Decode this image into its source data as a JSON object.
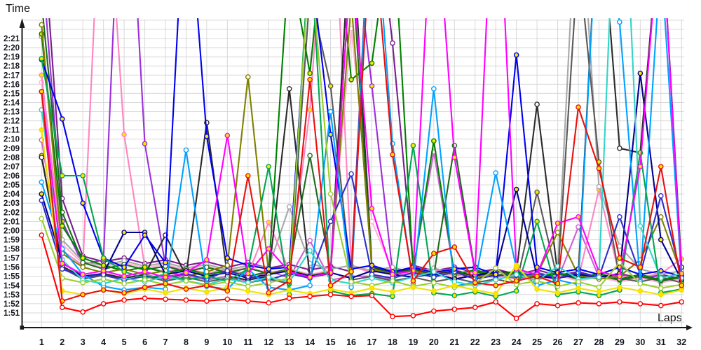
{
  "chart_data": {
    "type": "line",
    "title": "",
    "ylabel": "Time",
    "xlabel": "Laps",
    "grid": true,
    "legend": "none",
    "x_ticks": [
      1,
      2,
      3,
      4,
      5,
      6,
      7,
      8,
      9,
      10,
      11,
      12,
      13,
      14,
      15,
      16,
      17,
      18,
      19,
      20,
      21,
      22,
      23,
      24,
      25,
      26,
      27,
      28,
      29,
      30,
      31,
      32
    ],
    "y_tick_labels": [
      "2:21",
      "2:20",
      "2:19",
      "2:18",
      "2:17",
      "2:16",
      "2:15",
      "2:14",
      "2:13",
      "2:12",
      "2:11",
      "2:10",
      "2:09",
      "2:08",
      "2:07",
      "2:06",
      "2:05",
      "2:04",
      "2:03",
      "2:02",
      "2:01",
      "2:00",
      "1:59",
      "1:58",
      "1:57",
      "1:56",
      "1:55",
      "1:54",
      "1:53",
      "1:52",
      "1:51"
    ],
    "y_tick_seconds_top": 141,
    "ylim_seconds": [
      110,
      143
    ],
    "xlim_laps": [
      1,
      32
    ],
    "axis_color": "#1a1a1a",
    "grid_color": "#d8d8d8",
    "tick_label_color": "#14141e",
    "marker_fills": {
      "white": "#ffffff",
      "yellow": "#ffe400"
    },
    "note": "values are lap times in seconds; values above ~143s run off the top of the plot (pit/incident laps)",
    "series": [
      {
        "id": "series-purple",
        "color": "#7a1f8e",
        "marker": "white",
        "values": [
          155,
          123.5,
          117.2,
          116.6,
          117,
          116.4,
          116.8,
          116.2,
          116.6,
          116,
          116.5,
          115.9,
          116.3,
          115.7,
          116.1,
          115.5,
          160,
          140.5,
          116.2,
          115.6,
          116,
          115.4,
          115.8,
          115.2,
          115.7,
          115.1,
          115.5,
          114.9,
          115.3,
          114.8,
          115.2,
          114.7
        ]
      },
      {
        "id": "series-violet",
        "color": "#9b30d9",
        "marker": "yellow",
        "values": [
          150,
          121,
          116.3,
          116.8,
          170,
          129.5,
          116.2,
          115.6,
          116,
          115.4,
          115.9,
          115.3,
          115.8,
          115.2,
          115.6,
          155,
          135.8,
          115.5,
          115.9,
          115.3,
          115.7,
          115.1,
          115.6,
          115,
          115.4,
          114.9,
          115.3,
          114.8,
          115.2,
          114.7,
          115.1,
          114.6
        ]
      },
      {
        "id": "series-orchid",
        "color": "#cf5fd3",
        "marker": "white",
        "values": [
          129.9,
          116,
          114.9,
          115.3,
          114.8,
          115.2,
          114.7,
          115.1,
          114.6,
          115,
          114.5,
          115.6,
          114.8,
          118.9,
          114.6,
          115,
          115,
          114.7,
          115.8,
          128.6,
          115.2,
          114.8,
          115.3,
          114.7,
          115.1,
          114.6,
          120.4,
          114.9,
          114.5,
          114.8,
          114.4,
          114.7
        ]
      },
      {
        "id": "series-lightpink",
        "color": "#ffb5d9",
        "marker": "white",
        "values": [
          136.2,
          118.5,
          116.4,
          116,
          116.5,
          115.9,
          116.3,
          115.7,
          116.1,
          115.5,
          116,
          115.4,
          115.8,
          115.2,
          115.7,
          142.1,
          121,
          115.6,
          115,
          115.5,
          114.9,
          115.3,
          114.8,
          115.2,
          114.6,
          115.1,
          114.5,
          114.9,
          114.4,
          114.8,
          114.3,
          114.7
        ]
      },
      {
        "id": "series-pink",
        "color": "#ff85c2",
        "marker": "yellow",
        "values": [
          137,
          117.8,
          116.2,
          165,
          130.5,
          116,
          115.5,
          115.9,
          115.3,
          115.8,
          115.2,
          120.9,
          115.6,
          133.2,
          165,
          116.1,
          115.4,
          115.8,
          115.2,
          115.7,
          115.1,
          115.5,
          114.9,
          115.4,
          114.8,
          115.2,
          114.7,
          124.5,
          115,
          114.9,
          115.3,
          116.9
        ]
      },
      {
        "id": "series-gray",
        "color": "#a8a8a8",
        "marker": "white",
        "values": [
          141.2,
          119,
          116.6,
          116.2,
          116.7,
          116.1,
          116.5,
          115.9,
          116.3,
          115.7,
          116.2,
          116,
          122.6,
          116.4,
          115.8,
          116.2,
          115.6,
          116,
          115.4,
          115.9,
          115.3,
          115.7,
          115.1,
          115.6,
          115,
          115.5,
          160,
          124.8,
          118.3,
          115.8,
          115.2,
          115.6
        ]
      },
      {
        "id": "series-darkgray",
        "color": "#595959",
        "marker": "yellow",
        "values": [
          128.2,
          115.9,
          114.7,
          115.1,
          114.6,
          115,
          114.5,
          114.9,
          114.4,
          114.8,
          114.3,
          114.7,
          114.2,
          146,
          135.8,
          114.6,
          115,
          114.5,
          114.9,
          114.4,
          114.8,
          114.3,
          114.7,
          114.2,
          124.2,
          114.6,
          150,
          127.5,
          114.8,
          114.4,
          114.9,
          114.3
        ]
      },
      {
        "id": "series-black",
        "color": "#2b2b2b",
        "marker": "white",
        "values": [
          128,
          116.1,
          114.9,
          115.3,
          114.8,
          115.2,
          119.5,
          115.1,
          131.8,
          115,
          114.6,
          115,
          135.5,
          114.9,
          115.3,
          155,
          116,
          115.4,
          115.8,
          115.2,
          115.6,
          115,
          115.5,
          115.4,
          133.8,
          115.3,
          115.1,
          158,
          129,
          128.5,
          155,
          116
        ]
      },
      {
        "id": "series-forest",
        "color": "#1c6b1c",
        "marker": "white",
        "values": [
          145,
          122,
          116.5,
          115.8,
          116.3,
          115.7,
          116.1,
          115.5,
          116,
          115.4,
          115.9,
          115.3,
          115.8,
          128.2,
          115.6,
          150,
          115.9,
          115.3,
          115.7,
          115.1,
          129.3,
          115.5,
          115,
          115.4,
          114.8,
          115.3,
          114.7,
          115.1,
          114.6,
          115,
          114.5,
          114.9
        ]
      },
      {
        "id": "series-darkgreen",
        "color": "#008000",
        "marker": "yellow",
        "values": [
          141.5,
          120.5,
          117,
          116.2,
          115.6,
          116,
          115.4,
          115.8,
          115.2,
          115.6,
          115,
          115.5,
          150,
          137.2,
          160,
          136.5,
          138.3,
          155,
          115.6,
          129.8,
          115.2,
          115.7,
          115.1,
          115.5,
          114.9,
          115.4,
          114.8,
          115.3,
          114.7,
          115.2,
          114.6,
          115
        ]
      },
      {
        "id": "series-olive",
        "color": "#808000",
        "marker": "white",
        "values": [
          142.5,
          117.5,
          116,
          115.4,
          115.8,
          115.2,
          115.6,
          115,
          115.5,
          116.2,
          136.8,
          115.3,
          115.7,
          115.1,
          115.5,
          145,
          115.8,
          115.2,
          115.6,
          115,
          115.4,
          114.9,
          115.3,
          114.8,
          115.2,
          119.8,
          115.1,
          114.7,
          115,
          116.8,
          121.5,
          115.2
        ]
      },
      {
        "id": "series-navy",
        "color": "#000090",
        "marker": "yellow",
        "values": [
          124,
          116.5,
          115,
          115.3,
          119.8,
          119.8,
          115.2,
          115.6,
          115,
          115.4,
          114.8,
          115.2,
          115.6,
          115,
          115.4,
          114.8,
          115.6,
          115.2,
          114.9,
          115.3,
          114.7,
          115.1,
          115.5,
          124.5,
          115,
          114.8,
          115.2,
          114.9,
          115.3,
          137.2,
          119,
          114.6
        ]
      },
      {
        "id": "series-mediumblue",
        "color": "#2e2ecc",
        "marker": "white",
        "values": [
          123.3,
          115.8,
          114.9,
          115.2,
          114.6,
          115,
          114.8,
          115.3,
          114.7,
          115.6,
          115,
          114.6,
          115.3,
          114.8,
          121,
          126.2,
          115.2,
          114.8,
          115.4,
          114.9,
          115.5,
          114.7,
          115.1,
          115.1,
          115.3,
          114.8,
          115.4,
          114.9,
          121.5,
          115.2,
          123.8,
          115
        ]
      },
      {
        "id": "series-blue",
        "color": "#0000f0",
        "marker": "yellow",
        "values": [
          138.7,
          132.2,
          123,
          117,
          116,
          119.5,
          116.5,
          160,
          130.3,
          117,
          116.2,
          115.8,
          116,
          150,
          130.5,
          115.8,
          116.2,
          115.5,
          116,
          115.4,
          115.8,
          116,
          115.2,
          139.2,
          116,
          115.4,
          115.8,
          115.2,
          116,
          115.2,
          115.6,
          115
        ]
      },
      {
        "id": "series-deepsky",
        "color": "#00a2ff",
        "marker": "white",
        "values": [
          125.3,
          118,
          115.2,
          113.9,
          113.5,
          113.8,
          113.6,
          128.8,
          113.9,
          113.6,
          115.8,
          113.8,
          113.5,
          114,
          133,
          113.8,
          160,
          129.5,
          114.2,
          135.5,
          113.9,
          114.4,
          126.3,
          115.9,
          114,
          114.6,
          114.1,
          158,
          142.8,
          114.4,
          150,
          114.8
        ]
      },
      {
        "id": "series-turquoise",
        "color": "#30d5c8",
        "marker": "white",
        "values": [
          133.2,
          116.8,
          114.6,
          114.2,
          114.8,
          114.4,
          115,
          114.5,
          114.1,
          114.7,
          114.3,
          114.9,
          114.4,
          117.8,
          114.6,
          114.2,
          114.8,
          114.3,
          114.9,
          115.5,
          114.4,
          114,
          114.6,
          115.2,
          114.5,
          116.1,
          114.7,
          114.9,
          170,
          120.5,
          114.8,
          115.3
        ]
      },
      {
        "id": "series-green",
        "color": "#00a651",
        "marker": "yellow",
        "values": [
          138.8,
          126,
          126,
          117,
          115.5,
          114.8,
          115.2,
          114.6,
          115,
          114.5,
          115.8,
          127,
          113,
          152,
          113.4,
          112.9,
          113.1,
          112.8,
          129.3,
          113.2,
          112.9,
          113.3,
          112.8,
          113.4,
          121,
          113,
          113.3,
          112.9,
          113.5,
          128.5,
          113.2,
          113.6
        ]
      },
      {
        "id": "series-magenta",
        "color": "#ff00ff",
        "marker": "yellow",
        "values": [
          135.2,
          116.4,
          115.2,
          115.6,
          115,
          115.5,
          114.9,
          115.4,
          116.8,
          130.4,
          115.3,
          118,
          115.5,
          114.9,
          115.4,
          150,
          122.4,
          115.2,
          115.6,
          160,
          128,
          115.4,
          165,
          115.8,
          115.2,
          120.8,
          121.5,
          115.5,
          115,
          127,
          155,
          115.3
        ]
      },
      {
        "id": "series-yellowgreen",
        "color": "#9acd32",
        "marker": "white",
        "values": [
          121.3,
          114.8,
          114.3,
          114.7,
          114.2,
          114.6,
          114.1,
          114.5,
          114,
          114.4,
          113.9,
          114.3,
          114.8,
          150,
          124,
          114.4,
          114,
          114.5,
          113.9,
          114.3,
          113.8,
          114.2,
          115.9,
          114.1,
          114.5,
          113.9,
          114.4,
          113.8,
          116.5,
          114.2,
          113.7,
          114.1
        ]
      },
      {
        "id": "series-yellow",
        "color": "#f0e000",
        "marker": "yellow",
        "values": [
          131,
          113.4,
          113,
          113.5,
          113.1,
          113.6,
          113.2,
          113.7,
          113.3,
          113.8,
          113.4,
          113,
          113.5,
          113.1,
          113.6,
          113.2,
          113.7,
          113.3,
          113.8,
          113.4,
          114,
          113.5,
          113.1,
          116.2,
          113.6,
          113.2,
          113.7,
          113.3,
          113.8,
          113.4,
          113,
          113.5
        ]
      },
      {
        "id": "series-red-2",
        "color": "#e81010",
        "marker": "yellow",
        "values": [
          135.2,
          112.3,
          113,
          113.5,
          113.2,
          113.8,
          114.2,
          113.6,
          114,
          113.4,
          126,
          113.2,
          114.5,
          136.5,
          114,
          115.5,
          155,
          128.3,
          114.5,
          117.5,
          118.2,
          114.3,
          114,
          114.5,
          115,
          114.2,
          133.5,
          126.8,
          117,
          116,
          127,
          114
        ]
      },
      {
        "id": "series-red-1",
        "color": "#ff0000",
        "marker": "white",
        "values": [
          119.5,
          111.6,
          111.1,
          112,
          112.4,
          112.6,
          112.5,
          112.4,
          112.3,
          112.5,
          112.3,
          112.1,
          112.6,
          112.8,
          113,
          112.8,
          112.9,
          110.6,
          110.7,
          111.2,
          111.4,
          111.6,
          112.2,
          110.4,
          112,
          111.8,
          112.1,
          112,
          112.2,
          112,
          111.8,
          112.2
        ]
      }
    ]
  }
}
